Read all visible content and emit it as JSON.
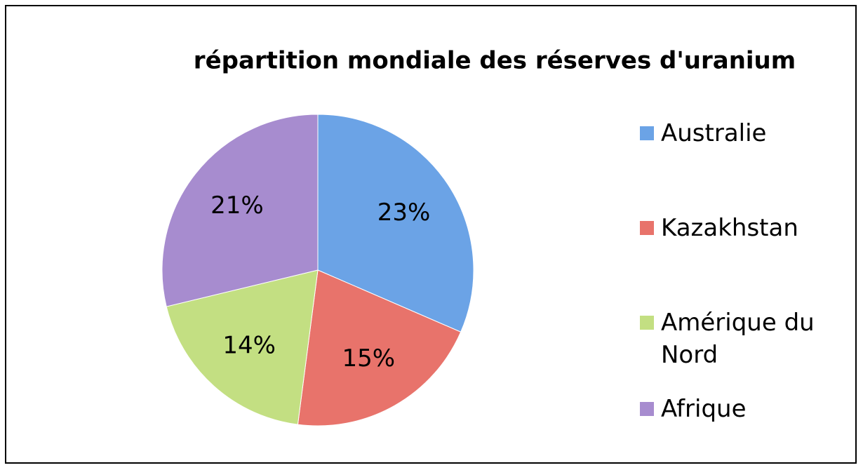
{
  "chart_data": {
    "type": "pie",
    "title": "répartition mondiale des réserves d'uranium",
    "categories": [
      "Australie",
      "Kazakhstan",
      "Amérique du Nord",
      "Afrique"
    ],
    "values": [
      23,
      15,
      14,
      21
    ],
    "value_labels": [
      "23%",
      "15%",
      "14%",
      "21%"
    ],
    "colors": [
      "#6ba3e6",
      "#e8736b",
      "#c3df82",
      "#a78ccf"
    ],
    "legend": "right"
  }
}
